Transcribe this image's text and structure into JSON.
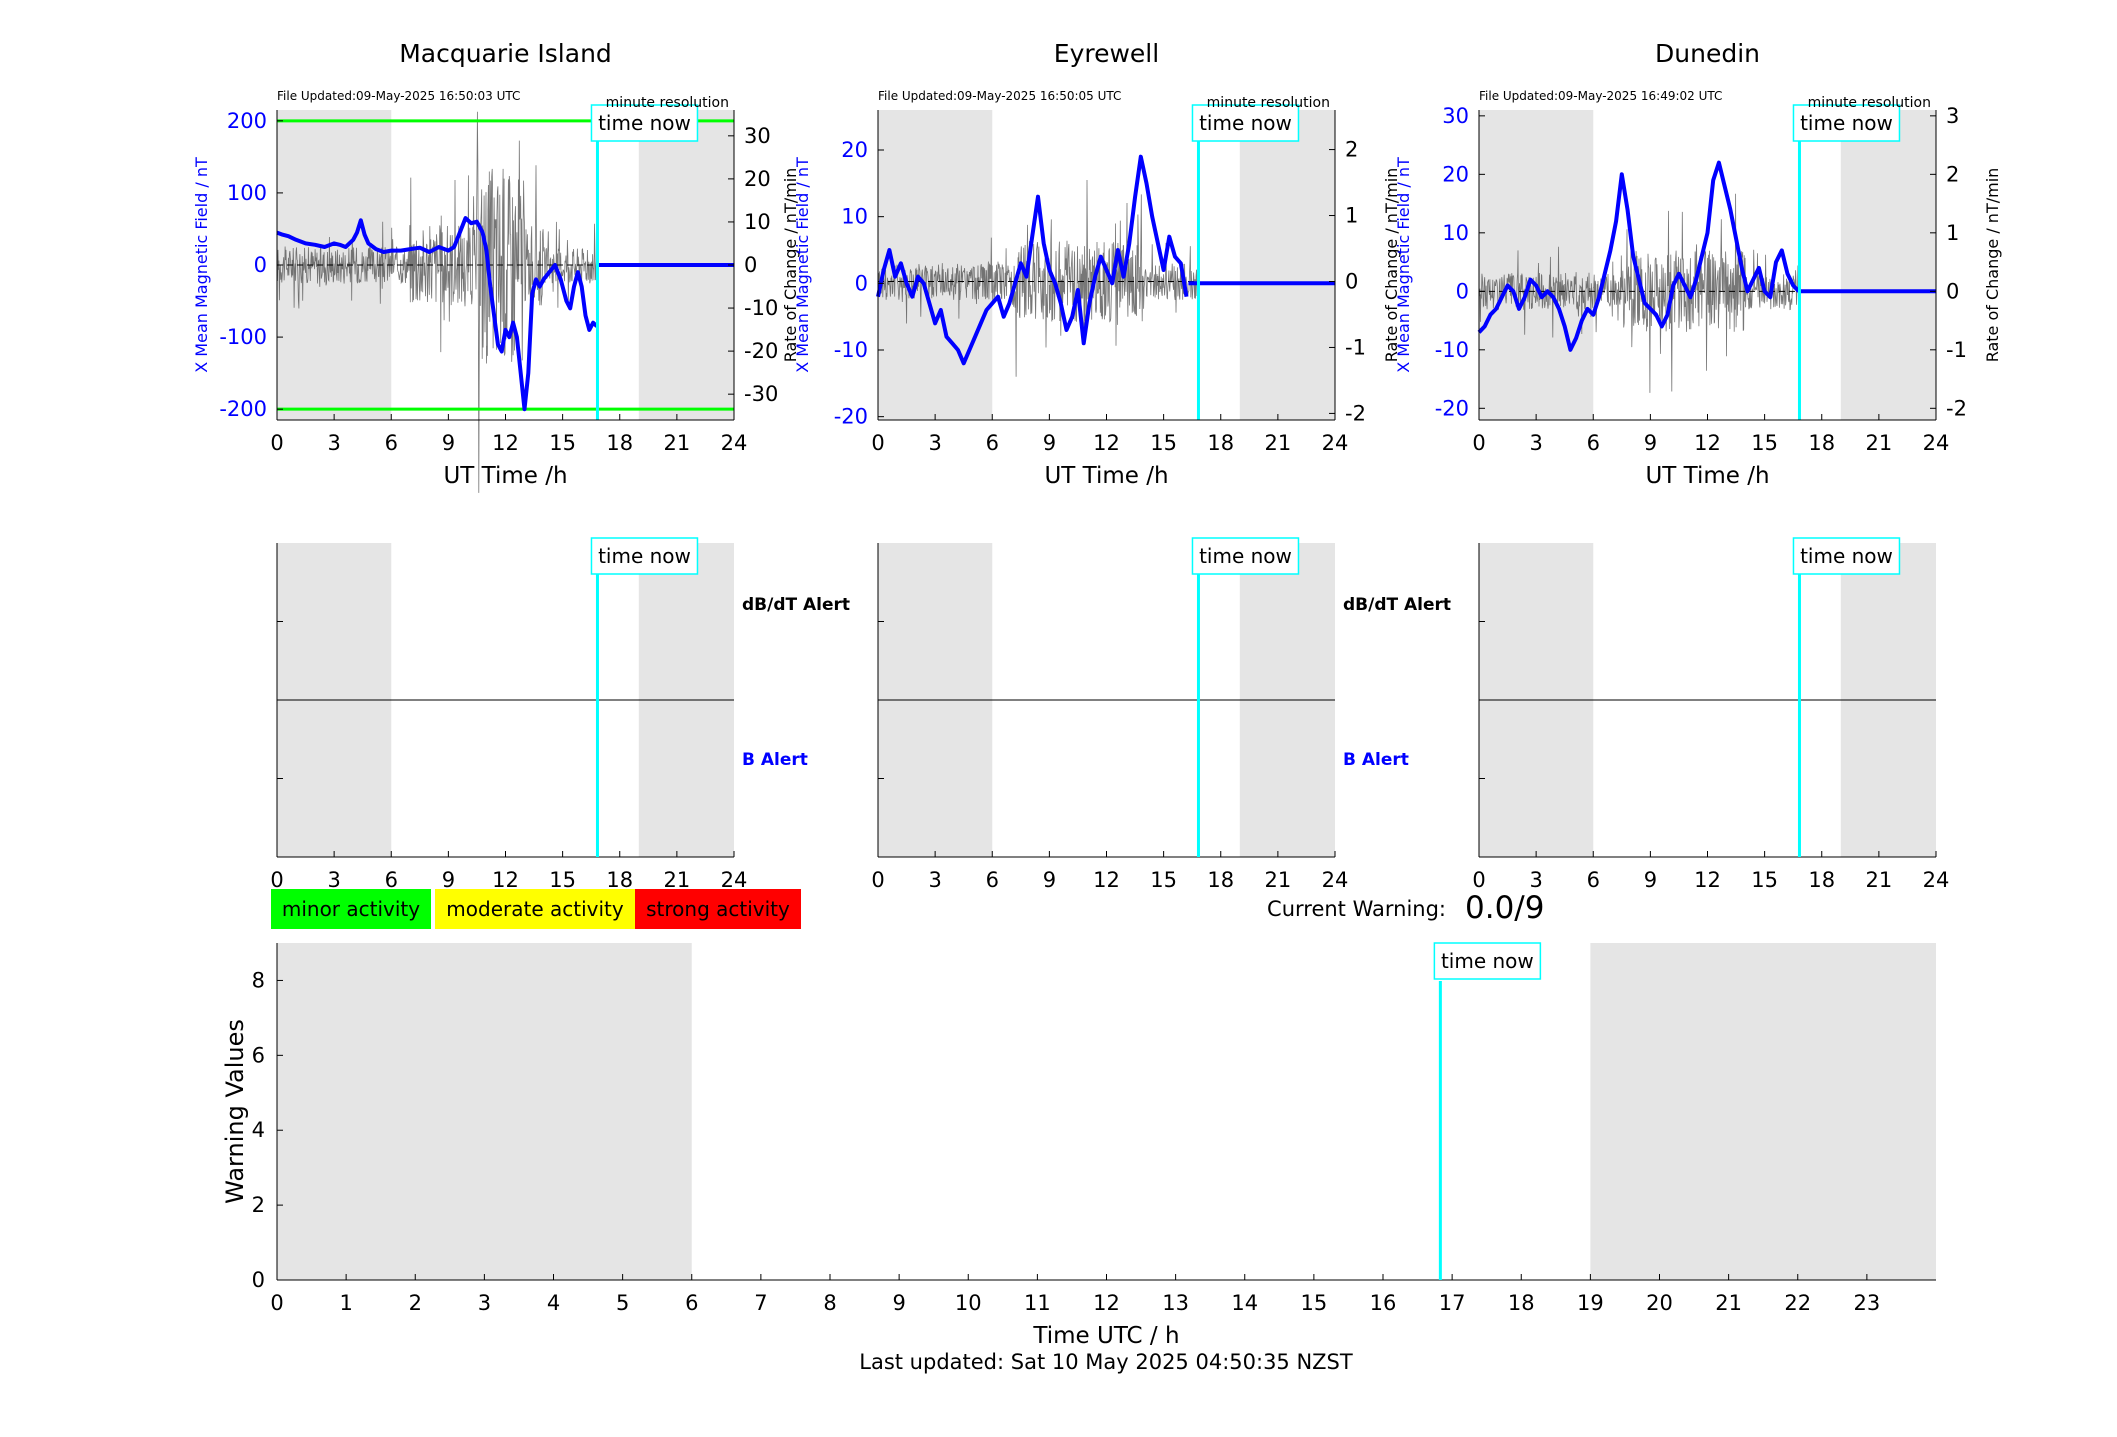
{
  "colors": {
    "b_field": "#0000ff",
    "rate": "#555555",
    "threshold": "#00ff00",
    "now": "#00ffff",
    "shade": "#e5e5e5",
    "minor": "#00ff00",
    "moderate": "#ffff00",
    "strong": "#ff0000"
  },
  "common": {
    "x_ticks": [
      "0",
      "3",
      "6",
      "9",
      "12",
      "15",
      "18",
      "21",
      "24"
    ],
    "xlabel": "UT Time /h",
    "left_ylabel": "X Mean Magnetic Field / nT",
    "right_ylabel": "Rate of Change / nT/min",
    "resolution": "minute resolution",
    "time_now": "time now",
    "now_hour": 16.83,
    "night_shade": [
      [
        0,
        6
      ],
      [
        19,
        24
      ]
    ]
  },
  "stations": [
    {
      "title": "Macquarie Island",
      "file_updated": "File Updated:09-May-2025 16:50:03 UTC",
      "left_ticks": [
        "200",
        "100",
        "0",
        "-100",
        "-200"
      ],
      "right_ticks": [
        "30",
        "20",
        "10",
        "0",
        "-10",
        "-20",
        "-30"
      ]
    },
    {
      "title": "Eyrewell",
      "file_updated": "File Updated:09-May-2025 16:50:05 UTC",
      "left_ticks": [
        "20",
        "10",
        "0",
        "-10",
        "-20"
      ],
      "right_ticks": [
        "2",
        "1",
        "0",
        "-1",
        "-2"
      ]
    },
    {
      "title": "Dunedin",
      "file_updated": "File Updated:09-May-2025 16:49:02 UTC",
      "left_ticks": [
        "30",
        "20",
        "10",
        "0",
        "-10",
        "-20"
      ],
      "right_ticks": [
        "3",
        "2",
        "1",
        "0",
        "-1",
        "-2"
      ]
    }
  ],
  "alerts": {
    "dbdt_label": "dB/dT Alert",
    "b_label": "B Alert"
  },
  "legend": {
    "minor": "minor activity",
    "moderate": "moderate activity",
    "strong": "strong activity"
  },
  "warning": {
    "label": "Current Warning:",
    "value": "0.0/9"
  },
  "footer": "Last updated: Sat 10 May 2025 04:50:35 NZST",
  "chart_data": [
    {
      "type": "line",
      "title": "Macquarie Island",
      "xlabel": "UT Time /h",
      "ylabel": "X Mean Magnetic Field / nT",
      "y2label": "Rate of Change / nT/min",
      "xlim": [
        0,
        24
      ],
      "ylim": [
        -215,
        215
      ],
      "y2lim": [
        -36,
        36
      ],
      "thresholds": [
        200,
        -200
      ],
      "series": [
        {
          "axis": "left",
          "style": "thick",
          "x": [
            0,
            0.3,
            0.6,
            1,
            1.5,
            2,
            2.5,
            3,
            3.3,
            3.6,
            4,
            4.2,
            4.4,
            4.6,
            4.8,
            5.2,
            5.6,
            6,
            6.5,
            7,
            7.5,
            8,
            8.5,
            9,
            9.3,
            9.6,
            9.9,
            10.2,
            10.5,
            10.8,
            11,
            11.2,
            11.4,
            11.6,
            11.8,
            12,
            12.2,
            12.4,
            12.6,
            12.8,
            13,
            13.2,
            13.4,
            13.6,
            13.8,
            14,
            14.3,
            14.6,
            14.9,
            15.2,
            15.4,
            15.6,
            15.8,
            16,
            16.2,
            16.4,
            16.6,
            16.8
          ],
          "y": [
            45,
            42,
            40,
            35,
            30,
            28,
            25,
            30,
            28,
            25,
            35,
            45,
            62,
            42,
            30,
            22,
            18,
            20,
            20,
            22,
            24,
            18,
            25,
            20,
            25,
            45,
            65,
            58,
            60,
            45,
            20,
            -30,
            -70,
            -110,
            -120,
            -90,
            -100,
            -80,
            -100,
            -150,
            -200,
            -150,
            -40,
            -20,
            -30,
            -20,
            -10,
            0,
            -20,
            -50,
            -60,
            -30,
            -10,
            -30,
            -70,
            -90,
            -80,
            -85
          ]
        },
        {
          "axis": "left",
          "style": "thick",
          "x": [
            16.85,
            24
          ],
          "y": [
            0,
            0
          ]
        }
      ]
    },
    {
      "type": "line",
      "title": "Eyrewell",
      "xlabel": "UT Time /h",
      "ylabel": "X Mean Magnetic Field / nT",
      "y2label": "Rate of Change / nT/min",
      "xlim": [
        0,
        24
      ],
      "ylim": [
        -20.5,
        26
      ],
      "y2lim": [
        -2.1,
        2.6
      ],
      "series": [
        {
          "axis": "left",
          "style": "thick",
          "x": [
            0,
            0.3,
            0.6,
            0.9,
            1.2,
            1.5,
            1.8,
            2.1,
            2.4,
            2.7,
            3,
            3.3,
            3.6,
            3.9,
            4.2,
            4.5,
            4.8,
            5.1,
            5.4,
            5.7,
            6,
            6.3,
            6.6,
            6.9,
            7.2,
            7.5,
            7.8,
            8.1,
            8.4,
            8.7,
            9,
            9.3,
            9.6,
            9.9,
            10.2,
            10.5,
            10.8,
            11.1,
            11.4,
            11.7,
            12,
            12.3,
            12.6,
            12.9,
            13.2,
            13.5,
            13.8,
            14.1,
            14.4,
            14.7,
            15,
            15.3,
            15.6,
            15.9,
            16.2
          ],
          "y": [
            -2,
            2,
            5,
            1,
            3,
            0,
            -2,
            1,
            0,
            -3,
            -6,
            -4,
            -8,
            -9,
            -10,
            -12,
            -10,
            -8,
            -6,
            -4,
            -3,
            -2,
            -5,
            -3,
            0,
            3,
            1,
            7,
            13,
            6,
            2,
            0,
            -3,
            -7,
            -5,
            -1,
            -9,
            -3,
            1,
            4,
            2,
            0,
            5,
            1,
            6,
            13,
            19,
            15,
            10,
            6,
            2,
            7,
            4,
            3,
            -2
          ]
        },
        {
          "axis": "left",
          "style": "thick",
          "x": [
            16.3,
            24
          ],
          "y": [
            0,
            0
          ]
        }
      ]
    },
    {
      "type": "line",
      "title": "Dunedin",
      "xlabel": "UT Time /h",
      "ylabel": "X Mean Magnetic Field / nT",
      "y2label": "Rate of Change / nT/min",
      "xlim": [
        0,
        24
      ],
      "ylim": [
        -22,
        31
      ],
      "y2lim": [
        -2.2,
        3.1
      ],
      "series": [
        {
          "axis": "left",
          "style": "thick",
          "x": [
            0,
            0.3,
            0.6,
            0.9,
            1.2,
            1.5,
            1.8,
            2.1,
            2.4,
            2.7,
            3,
            3.3,
            3.6,
            3.9,
            4.2,
            4.5,
            4.8,
            5.1,
            5.4,
            5.7,
            6,
            6.3,
            6.6,
            6.9,
            7.2,
            7.5,
            7.8,
            8.1,
            8.4,
            8.7,
            9,
            9.3,
            9.6,
            9.9,
            10.2,
            10.5,
            10.8,
            11.1,
            11.4,
            11.7,
            12,
            12.3,
            12.6,
            12.9,
            13.2,
            13.5,
            13.8,
            14.1,
            14.4,
            14.7,
            15,
            15.3,
            15.6,
            15.9,
            16.2,
            16.5,
            16.8
          ],
          "y": [
            -7,
            -6,
            -4,
            -3,
            -1,
            1,
            0,
            -3,
            -1,
            2,
            1,
            -1,
            0,
            -1,
            -3,
            -6,
            -10,
            -8,
            -5,
            -3,
            -4,
            -1,
            3,
            7,
            12,
            20,
            14,
            6,
            2,
            -2,
            -3,
            -4,
            -6,
            -4,
            1,
            3,
            1,
            -1,
            2,
            6,
            10,
            19,
            22,
            18,
            14,
            9,
            4,
            0,
            2,
            4,
            0,
            -1,
            5,
            7,
            3,
            1,
            0
          ]
        },
        {
          "axis": "left",
          "style": "thick",
          "x": [
            16.85,
            24
          ],
          "y": [
            0,
            0
          ]
        }
      ]
    },
    {
      "type": "bar",
      "title": "",
      "xlabel": "Time UTC / h",
      "ylabel": "Warning Values",
      "x_ticks": [
        "0",
        "1",
        "2",
        "3",
        "4",
        "5",
        "6",
        "7",
        "8",
        "9",
        "10",
        "11",
        "12",
        "13",
        "14",
        "15",
        "16",
        "17",
        "18",
        "19",
        "20",
        "21",
        "22",
        "23"
      ],
      "y_ticks": [
        "0",
        "2",
        "4",
        "6",
        "8"
      ],
      "xlim": [
        0,
        24
      ],
      "ylim": [
        0,
        9
      ],
      "values": []
    }
  ]
}
